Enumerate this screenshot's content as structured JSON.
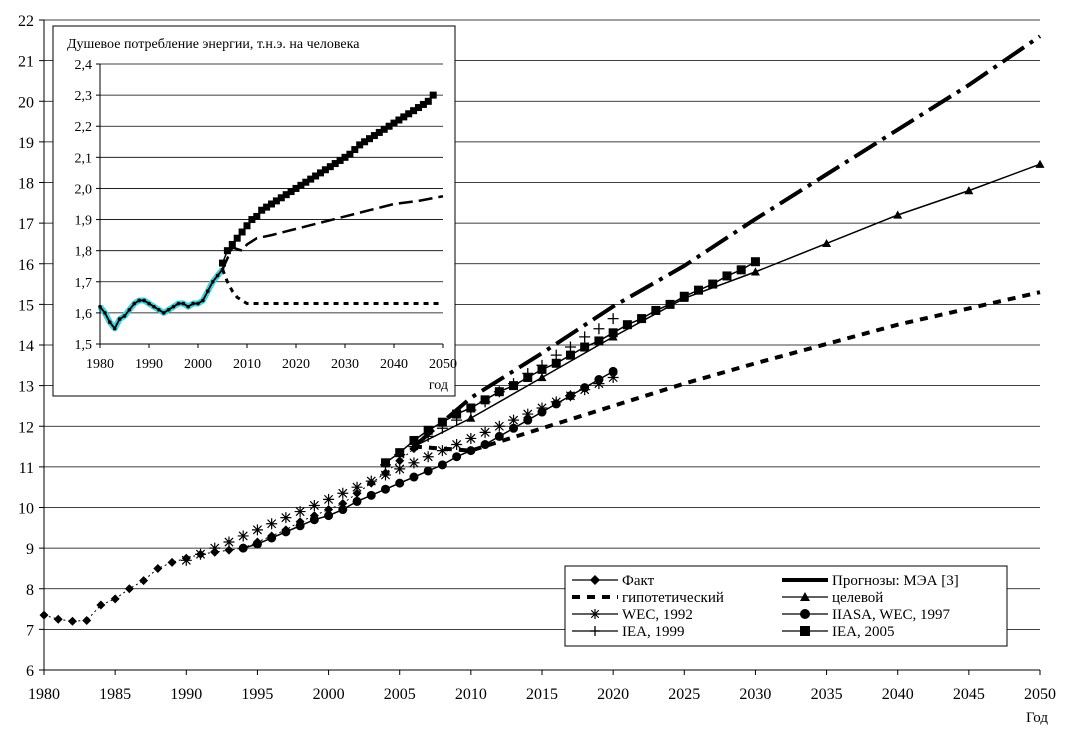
{
  "chart_data": [
    {
      "type": "line",
      "xlabel": "Год",
      "ylabel": "",
      "xlim": [
        1980,
        2050
      ],
      "ylim": [
        6,
        22
      ],
      "x_ticks": [
        1980,
        1985,
        1990,
        1995,
        2000,
        2005,
        2010,
        2015,
        2020,
        2025,
        2030,
        2035,
        2040,
        2045,
        2050
      ],
      "y_ticks": [
        6,
        7,
        8,
        9,
        10,
        11,
        12,
        13,
        14,
        15,
        16,
        17,
        18,
        19,
        20,
        21,
        22
      ],
      "grid": "horizontal",
      "legend_position": "bottom-right",
      "legend_entries": [
        "Факт",
        "Прогнозы: МЭА [3]",
        "гипотетический",
        "целевой",
        "WEC, 1992",
        "IIASA, WEC, 1997",
        "IEA, 1999",
        "IEA, 2005"
      ],
      "series": [
        {
          "name": "Факт",
          "style": "diamond-dotted",
          "x": [
            1980,
            1981,
            1982,
            1983,
            1984,
            1985,
            1986,
            1987,
            1988,
            1989,
            1990,
            1991,
            1992,
            1993,
            1994,
            1995,
            1996,
            1997,
            1998,
            1999,
            2000,
            2001,
            2002,
            2003,
            2004,
            2005,
            2006
          ],
          "y": [
            7.35,
            7.25,
            7.2,
            7.22,
            7.6,
            7.75,
            8.0,
            8.2,
            8.5,
            8.65,
            8.75,
            8.85,
            8.9,
            8.95,
            9.0,
            9.15,
            9.3,
            9.45,
            9.65,
            9.8,
            9.95,
            10.1,
            10.35,
            10.6,
            10.85,
            11.15,
            11.45
          ]
        },
        {
          "name": "гипотетический",
          "style": "dashed",
          "x": [
            2006,
            2010,
            2015,
            2020,
            2025,
            2030,
            2040,
            2050
          ],
          "y": [
            11.5,
            11.4,
            11.95,
            12.5,
            13.05,
            13.55,
            14.5,
            15.3
          ]
        },
        {
          "name": "целевой",
          "style": "triangle-line",
          "x": [
            2006,
            2010,
            2015,
            2020,
            2025,
            2030,
            2035,
            2040,
            2045,
            2050
          ],
          "y": [
            11.5,
            12.2,
            13.2,
            14.2,
            15.15,
            15.8,
            16.5,
            17.2,
            17.8,
            18.45
          ]
        },
        {
          "name": "Прогнозы: МЭА [3]",
          "style": "dash-dot",
          "x": [
            2006,
            2010,
            2015,
            2020,
            2025,
            2030,
            2035,
            2040,
            2045,
            2050
          ],
          "y": [
            11.5,
            12.7,
            13.8,
            14.95,
            15.95,
            17.1,
            18.2,
            19.3,
            20.4,
            21.6
          ]
        },
        {
          "name": "WEC, 1992",
          "style": "star",
          "x": [
            1990,
            1991,
            1992,
            1993,
            1994,
            1995,
            1996,
            1997,
            1998,
            1999,
            2000,
            2001,
            2002,
            2003,
            2004,
            2005,
            2006,
            2007,
            2008,
            2009,
            2010,
            2011,
            2012,
            2013,
            2014,
            2015,
            2016,
            2017,
            2018,
            2019,
            2020
          ],
          "y": [
            8.7,
            8.85,
            9.0,
            9.15,
            9.3,
            9.45,
            9.6,
            9.75,
            9.9,
            10.05,
            10.2,
            10.35,
            10.5,
            10.65,
            10.8,
            10.95,
            11.1,
            11.25,
            11.4,
            11.55,
            11.7,
            11.85,
            12.0,
            12.15,
            12.3,
            12.45,
            12.6,
            12.75,
            12.9,
            13.05,
            13.2
          ]
        },
        {
          "name": "IIASA, WEC, 1997",
          "style": "circle-line",
          "x": [
            1994,
            1995,
            1996,
            1997,
            1998,
            1999,
            2000,
            2001,
            2002,
            2003,
            2004,
            2005,
            2006,
            2007,
            2008,
            2009,
            2010,
            2011,
            2012,
            2013,
            2014,
            2015,
            2016,
            2017,
            2018,
            2019,
            2020
          ],
          "y": [
            9.0,
            9.1,
            9.25,
            9.4,
            9.55,
            9.7,
            9.8,
            9.95,
            10.15,
            10.3,
            10.45,
            10.6,
            10.75,
            10.9,
            11.05,
            11.25,
            11.4,
            11.55,
            11.75,
            11.95,
            12.15,
            12.35,
            12.55,
            12.75,
            12.95,
            13.15,
            13.35
          ]
        },
        {
          "name": "IEA, 1999",
          "style": "plus",
          "x": [
            2004,
            2005,
            2006,
            2007,
            2008,
            2009,
            2010,
            2011,
            2012,
            2013,
            2014,
            2015,
            2016,
            2017,
            2018,
            2019,
            2020
          ],
          "y": [
            11.05,
            11.3,
            11.5,
            11.75,
            11.95,
            12.15,
            12.4,
            12.6,
            12.85,
            13.05,
            13.3,
            13.5,
            13.75,
            13.95,
            14.2,
            14.4,
            14.65
          ]
        },
        {
          "name": "IEA, 2005",
          "style": "square-line",
          "x": [
            2004,
            2005,
            2006,
            2007,
            2008,
            2009,
            2010,
            2011,
            2012,
            2013,
            2014,
            2015,
            2016,
            2017,
            2018,
            2019,
            2020,
            2021,
            2022,
            2023,
            2024,
            2025,
            2026,
            2027,
            2028,
            2029,
            2030
          ],
          "y": [
            11.1,
            11.35,
            11.65,
            11.9,
            12.1,
            12.3,
            12.45,
            12.65,
            12.85,
            13.0,
            13.2,
            13.4,
            13.55,
            13.75,
            13.95,
            14.1,
            14.3,
            14.5,
            14.65,
            14.85,
            15.0,
            15.2,
            15.35,
            15.5,
            15.7,
            15.85,
            16.05
          ]
        }
      ]
    },
    {
      "type": "line",
      "title": "Душевое потребление энергии, т.н.э. на человека",
      "xlabel": "год",
      "xlim": [
        1980,
        2050
      ],
      "ylim": [
        1.5,
        2.4
      ],
      "x_ticks": [
        1980,
        1990,
        2000,
        2010,
        2020,
        2030,
        2040,
        2050
      ],
      "x_tick_labels": [
        "1980",
        "1990",
        "2000",
        "2010",
        "2020",
        "2030",
        "2040",
        "2050"
      ],
      "y_ticks": [
        1.5,
        1.6,
        1.7,
        1.8,
        1.9,
        2.0,
        2.1,
        2.2,
        2.3,
        2.4
      ],
      "y_tick_labels": [
        "1,5",
        "1,6",
        "1,7",
        "1,8",
        "1,9",
        "2,0",
        "2,1",
        "2,2",
        "2,3",
        "2,4"
      ],
      "grid": "horizontal",
      "series": [
        {
          "style": "fact",
          "color": "#3fd2dc",
          "x": [
            1980,
            1981,
            1982,
            1983,
            1984,
            1985,
            1986,
            1987,
            1988,
            1989,
            1990,
            1991,
            1992,
            1993,
            1994,
            1995,
            1996,
            1997,
            1998,
            1999,
            2000,
            2001,
            2002,
            2003,
            2004,
            2005
          ],
          "y": [
            1.62,
            1.6,
            1.57,
            1.55,
            1.58,
            1.59,
            1.61,
            1.63,
            1.64,
            1.64,
            1.63,
            1.62,
            1.61,
            1.6,
            1.61,
            1.62,
            1.63,
            1.63,
            1.62,
            1.63,
            1.63,
            1.64,
            1.67,
            1.7,
            1.72,
            1.74
          ]
        },
        {
          "style": "dashed",
          "x": [
            2005,
            2006,
            2007,
            2008,
            2009,
            2010,
            2015,
            2020,
            2030,
            2040,
            2050
          ],
          "y": [
            1.74,
            1.7,
            1.67,
            1.65,
            1.64,
            1.63,
            1.63,
            1.63,
            1.63,
            1.63,
            1.63
          ]
        },
        {
          "style": "long-dash",
          "x": [
            2005,
            2007,
            2009,
            2010,
            2012,
            2015,
            2020,
            2025,
            2030,
            2035,
            2040,
            2045,
            2050
          ],
          "y": [
            1.74,
            1.81,
            1.8,
            1.82,
            1.84,
            1.85,
            1.87,
            1.89,
            1.91,
            1.93,
            1.95,
            1.96,
            1.975
          ]
        },
        {
          "style": "square-line",
          "x": [
            2005,
            2006,
            2007,
            2008,
            2009,
            2010,
            2011,
            2012,
            2013,
            2014,
            2015,
            2016,
            2017,
            2018,
            2019,
            2020,
            2021,
            2022,
            2023,
            2024,
            2025,
            2026,
            2027,
            2028,
            2029,
            2030,
            2031,
            2032,
            2033,
            2034,
            2035,
            2036,
            2037,
            2038,
            2039,
            2040,
            2041,
            2042,
            2043,
            2044,
            2045,
            2046,
            2047,
            2048
          ],
          "y": [
            1.76,
            1.8,
            1.82,
            1.84,
            1.86,
            1.88,
            1.9,
            1.91,
            1.93,
            1.94,
            1.95,
            1.96,
            1.97,
            1.98,
            1.99,
            2.0,
            2.01,
            2.02,
            2.03,
            2.04,
            2.05,
            2.06,
            2.07,
            2.08,
            2.09,
            2.1,
            2.11,
            2.125,
            2.14,
            2.15,
            2.16,
            2.17,
            2.18,
            2.19,
            2.2,
            2.21,
            2.22,
            2.23,
            2.24,
            2.25,
            2.26,
            2.27,
            2.28,
            2.3
          ]
        }
      ]
    }
  ]
}
